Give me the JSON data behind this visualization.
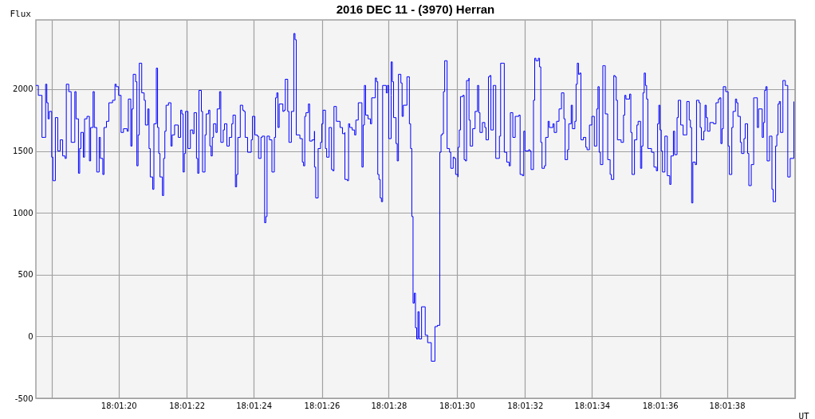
{
  "chart_data": {
    "type": "step",
    "title": "2016 DEC 11 - (3970) Herran",
    "xlabel": "UT",
    "ylabel": "Flux",
    "xlim": [
      18.02154,
      18.02778
    ],
    "ylim": [
      -500,
      2560
    ],
    "xticks": [
      {
        "value": 18.02167,
        "label": null
      },
      {
        "value": 18.02222,
        "label": "18:01:20"
      },
      {
        "value": 18.02278,
        "label": "18:01:22"
      },
      {
        "value": 18.02333,
        "label": "18:01:24"
      },
      {
        "value": 18.02389,
        "label": "18:01:26"
      },
      {
        "value": 18.02444,
        "label": "18:01:28"
      },
      {
        "value": 18.025,
        "label": "18:01:30"
      },
      {
        "value": 18.02556,
        "label": "18:01:32"
      },
      {
        "value": 18.02611,
        "label": "18:01:34"
      },
      {
        "value": 18.02667,
        "label": "18:01:36"
      },
      {
        "value": 18.02722,
        "label": "18:01:38"
      },
      {
        "value": 18.02778,
        "label": null
      }
    ],
    "yticks": [
      -500,
      0,
      500,
      1000,
      1500,
      2000
    ],
    "grid": true,
    "marker": "none",
    "line_style": "solid",
    "series": [
      {
        "color": "#0000ff",
        "x": [
          18.02154,
          18.02156,
          18.02158,
          18.02159,
          18.02161,
          18.02162,
          18.02163,
          18.02164,
          18.02165,
          18.02167,
          18.02168,
          18.0217,
          18.02172,
          18.02174,
          18.02176,
          18.02178,
          18.02179,
          18.02181,
          18.02183,
          18.02183,
          18.02186,
          18.02187,
          18.02189,
          18.0219,
          18.02191,
          18.02193,
          18.02194,
          18.02196,
          18.02198,
          18.02199,
          18.02201,
          18.02202,
          18.02204,
          18.02206,
          18.02207,
          18.02209,
          18.0221,
          18.02212,
          18.02214,
          18.02217,
          18.02219,
          18.0222,
          18.02222,
          18.02224,
          18.02226,
          18.02229,
          18.0223,
          18.02232,
          18.02233,
          18.02234,
          18.02236,
          18.02237,
          18.02238,
          18.02239,
          18.02241,
          18.02243,
          18.02244,
          18.02246,
          18.02247,
          18.02248,
          18.0225,
          18.02251,
          18.02253,
          18.02254,
          18.02255,
          18.02256,
          18.02258,
          18.02259,
          18.0226,
          18.02261,
          18.02263,
          18.02265,
          18.02266,
          18.02268,
          18.0227,
          18.02271,
          18.02273,
          18.02274,
          18.02275,
          18.02276,
          18.02277,
          18.02279,
          18.02281,
          18.02283,
          18.02284,
          18.02286,
          18.02287,
          18.02288,
          18.0229,
          18.02291,
          18.02293,
          18.02294,
          18.02296,
          18.02297,
          18.02298,
          18.02299,
          18.023,
          18.02302,
          18.02303,
          18.02305,
          18.02306,
          18.02308,
          18.02309,
          18.02311,
          18.02313,
          18.02315,
          18.02316,
          18.02318,
          18.02319,
          18.0232,
          18.02322,
          18.02324,
          18.02325,
          18.02326,
          18.02328,
          18.02331,
          18.02332,
          18.02334,
          18.02336,
          18.02337,
          18.02339,
          18.0234,
          18.02342,
          18.02343,
          18.02344,
          18.02346,
          18.02348,
          18.0235,
          18.02351,
          18.02352,
          18.02353,
          18.02354,
          18.02357,
          18.02358,
          18.02359,
          18.02361,
          18.02362,
          18.02364,
          18.02365,
          18.02366,
          18.02367,
          18.02368,
          18.02371,
          18.02373,
          18.02374,
          18.02375,
          18.02376,
          18.02378,
          18.02379,
          18.02381,
          18.02383,
          18.02383,
          18.02384,
          18.02386,
          18.02388,
          18.02389,
          18.0239,
          18.02392,
          18.02393,
          18.02395,
          18.02397,
          18.02398,
          18.02399,
          18.02401,
          18.02404,
          18.02406,
          18.02408,
          18.02408,
          18.0241,
          18.02411,
          18.02412,
          18.02414,
          18.02416,
          18.02417,
          18.02419,
          18.02421,
          18.02422,
          18.02423,
          18.02424,
          18.02425,
          18.02427,
          18.02429,
          18.0243,
          18.02433,
          18.02434,
          18.02435,
          18.02436,
          18.02437,
          18.02438,
          18.02439,
          18.02442,
          18.02443,
          18.02444,
          18.02446,
          18.02446,
          18.02447,
          18.02448,
          18.0245,
          18.02451,
          18.02452,
          18.02454,
          18.02455,
          18.02456,
          18.02459,
          18.02461,
          18.02461,
          18.02462,
          18.02463,
          18.02464,
          18.02465,
          18.02466,
          18.02467,
          18.02468,
          18.02469,
          18.02471,
          18.02474,
          18.02476,
          18.02479,
          18.02482,
          18.02484,
          18.02486,
          18.02487,
          18.02488,
          18.02489,
          18.0249,
          18.02492,
          18.02492,
          18.02494,
          18.02495,
          18.02497,
          18.02498,
          18.02499,
          18.02501,
          18.02501,
          18.02502,
          18.02503,
          18.02505,
          18.02506,
          18.02507,
          18.02508,
          18.0251,
          18.0251,
          18.02511,
          18.02513,
          18.02515,
          18.02517,
          18.02518,
          18.02519,
          18.02521,
          18.02523,
          18.02524,
          18.02526,
          18.02527,
          18.02528,
          18.0253,
          18.02531,
          18.02532,
          18.02534,
          18.02535,
          18.02536,
          18.02538,
          18.02539,
          18.02541,
          18.02543,
          18.02544,
          18.02546,
          18.02548,
          18.02551,
          18.02552,
          18.02554,
          18.02555,
          18.02556,
          18.02559,
          18.0256,
          18.02561,
          18.02563,
          18.02564,
          18.02565,
          18.02567,
          18.02568,
          18.02569,
          18.0257,
          18.02572,
          18.02573,
          18.02575,
          18.02576,
          18.02579,
          18.0258,
          18.02582,
          18.02584,
          18.02586,
          18.02588,
          18.02589,
          18.02591,
          18.02592,
          18.02594,
          18.02595,
          18.02597,
          18.02598,
          18.02599,
          18.026,
          18.02601,
          18.02602,
          18.02604,
          18.02606,
          18.02607,
          18.02609,
          18.02611,
          18.02613,
          18.02615,
          18.02616,
          18.02617,
          18.02618,
          18.0262,
          18.02621,
          18.02622,
          18.02624,
          18.02624,
          18.02626,
          18.02627,
          18.02629,
          18.0263,
          18.02631,
          18.02632,
          18.02635,
          18.02637,
          18.02638,
          18.02639,
          18.02642,
          18.02643,
          18.02644,
          18.02646,
          18.02648,
          18.02649,
          18.02651,
          18.02651,
          18.02652,
          18.02653,
          18.02654,
          18.02655,
          18.02656,
          18.02657,
          18.0266,
          18.02662,
          18.02664,
          18.02665,
          18.02666,
          18.02667,
          18.02668,
          18.02669,
          18.02671,
          18.02673,
          18.02675,
          18.02676,
          18.02678,
          18.02679,
          18.02681,
          18.02682,
          18.02684,
          18.02686,
          18.02688,
          18.02689,
          18.02691,
          18.02692,
          18.02693,
          18.02694,
          18.02696,
          18.02697,
          18.02699,
          18.027,
          18.02701,
          18.02703,
          18.02704,
          18.02705,
          18.02706,
          18.02708,
          18.02711,
          18.02713,
          18.02715,
          18.02716,
          18.02717,
          18.02718,
          18.02719,
          18.02721,
          18.02723,
          18.02724,
          18.02726,
          18.02727,
          18.02729,
          18.0273,
          18.02731,
          18.02733,
          18.02734,
          18.02736,
          18.02737,
          18.02739,
          18.0274,
          18.02742,
          18.02744,
          18.02745,
          18.02747,
          18.02748,
          18.02751,
          18.02752,
          18.02753,
          18.02754,
          18.02755,
          18.02757,
          18.02758,
          18.02759,
          18.0276,
          18.02762,
          18.02763,
          18.02764,
          18.02765,
          18.02766,
          18.02768,
          18.02768,
          18.0277,
          18.02771,
          18.02772,
          18.02774,
          18.02776,
          18.02777
        ],
        "values": [
          2030,
          1950,
          1950,
          1610,
          1610,
          2040,
          1890,
          1760,
          1820,
          1450,
          1260,
          1770,
          1500,
          1590,
          1460,
          1440,
          2040,
          1980,
          1970,
          1570,
          1980,
          1760,
          1320,
          1520,
          1650,
          1450,
          1760,
          1780,
          1420,
          1690,
          1980,
          1690,
          1330,
          1610,
          1440,
          1310,
          1690,
          1740,
          1890,
          1910,
          2040,
          2020,
          1950,
          1650,
          1680,
          1660,
          1920,
          1540,
          1840,
          2120,
          2060,
          1380,
          1630,
          2210,
          1970,
          1910,
          1710,
          1840,
          1520,
          1290,
          1190,
          1720,
          2170,
          1690,
          1480,
          1290,
          1140,
          1440,
          1660,
          1870,
          1890,
          1540,
          1630,
          1710,
          1710,
          1610,
          1830,
          1800,
          1330,
          1480,
          1820,
          1520,
          1670,
          1640,
          1810,
          1440,
          1320,
          1990,
          1820,
          1330,
          1630,
          1800,
          1830,
          1540,
          1460,
          1610,
          1720,
          1650,
          1840,
          1980,
          1570,
          1670,
          1720,
          1540,
          1610,
          1720,
          1790,
          1210,
          1310,
          1610,
          1870,
          1830,
          1820,
          1610,
          1490,
          1590,
          1780,
          1630,
          1620,
          1440,
          1610,
          1620,
          920,
          970,
          1620,
          1590,
          1330,
          1610,
          1930,
          1970,
          1690,
          1880,
          1820,
          1830,
          2080,
          1820,
          1570,
          1820,
          1820,
          2450,
          2400,
          1630,
          1600,
          1410,
          1380,
          1780,
          1810,
          1880,
          1580,
          1590,
          1660,
          1370,
          1120,
          1520,
          1570,
          1720,
          1830,
          1520,
          1450,
          1690,
          1350,
          1340,
          1860,
          1740,
          1690,
          1640,
          1650,
          1270,
          1260,
          1720,
          1690,
          1670,
          1630,
          1750,
          1890,
          1890,
          1370,
          1710,
          2030,
          1790,
          1760,
          1720,
          1930,
          2090,
          2060,
          1310,
          1270,
          1120,
          1090,
          2030,
          1970,
          2030,
          1600,
          1950,
          2220,
          2060,
          1770,
          1560,
          1420,
          2120,
          2050,
          1780,
          1870,
          2100,
          2080,
          1720,
          1520,
          970,
          270,
          350,
          70,
          -20,
          200,
          -20,
          240,
          10,
          -50,
          -200,
          80,
          90,
          1490,
          1630,
          1640,
          1980,
          2230,
          2230,
          1520,
          1490,
          1360,
          1450,
          1440,
          1310,
          1290,
          1530,
          1670,
          1940,
          1950,
          1430,
          1420,
          2070,
          2090,
          1750,
          1540,
          1680,
          1820,
          2030,
          1810,
          1650,
          1730,
          1690,
          1590,
          2100,
          2110,
          1670,
          2030,
          2030,
          1440,
          1440,
          1620,
          2210,
          2210,
          1490,
          1410,
          1380,
          1810,
          1610,
          1780,
          1790,
          1310,
          1300,
          1660,
          1500,
          1510,
          1500,
          1350,
          1910,
          2250,
          2230,
          2250,
          2180,
          1570,
          1360,
          1380,
          1610,
          1740,
          1690,
          1720,
          1650,
          1740,
          1840,
          1970,
          1760,
          1430,
          1510,
          1720,
          1870,
          1680,
          1740,
          2040,
          2210,
          2120,
          2130,
          1590,
          1610,
          1530,
          1510,
          1710,
          1780,
          1540,
          1840,
          2020,
          1490,
          1390,
          2190,
          2190,
          1800,
          1690,
          1430,
          1310,
          1270,
          2110,
          2100,
          1910,
          1590,
          1570,
          1790,
          1950,
          1920,
          1960,
          1650,
          1310,
          1590,
          1710,
          1740,
          1520,
          1360,
          1540,
          1970,
          2130,
          2030,
          1920,
          1520,
          1490,
          1370,
          1340,
          1720,
          1870,
          1670,
          1500,
          1330,
          1620,
          1300,
          1230,
          1460,
          1660,
          1470,
          1770,
          1910,
          1710,
          1630,
          1630,
          1900,
          1750,
          1690,
          1080,
          1410,
          1390,
          1910,
          1890,
          1690,
          1590,
          1660,
          1870,
          1770,
          1660,
          1730,
          1720,
          1890,
          1920,
          1930,
          1560,
          1680,
          2020,
          1980,
          1540,
          1310,
          1690,
          1820,
          1920,
          1890,
          1780,
          1570,
          1480,
          1600,
          1720,
          1480,
          1220,
          1390,
          1930,
          1930,
          1690,
          1840,
          1610,
          1730,
          1990,
          2020,
          1420,
          1620,
          1620,
          1190,
          1090,
          1540,
          1630,
          1880,
          1900,
          1650,
          1870,
          2070,
          2030,
          2030,
          1290,
          1440,
          1440,
          1900
        ]
      }
    ]
  }
}
